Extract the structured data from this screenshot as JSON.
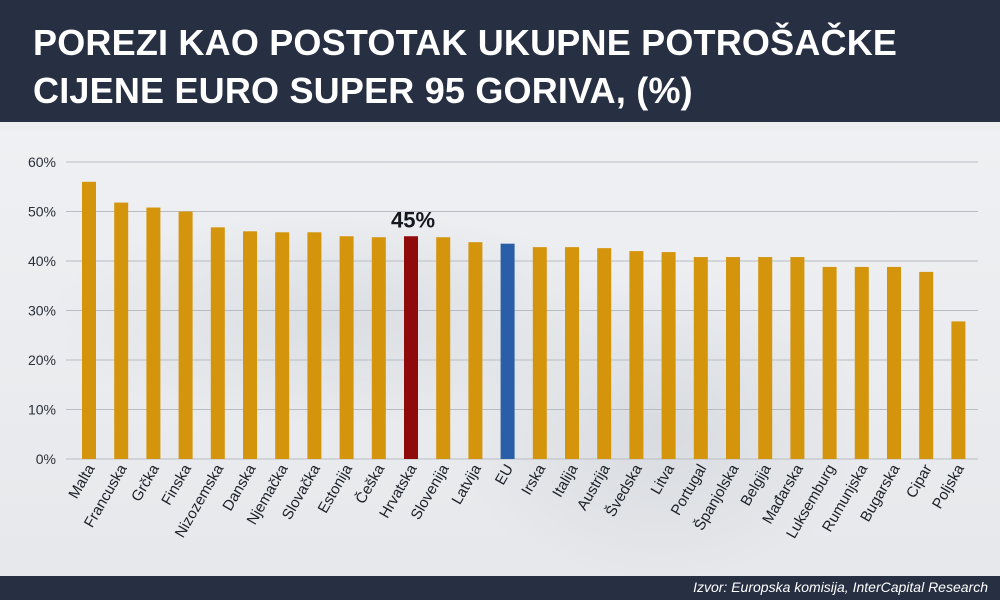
{
  "header": {
    "title_line1": "POREZI KAO POSTOTAK UKUPNE POTROŠAČKE",
    "title_line2": "CIJENE EURO SUPER 95 GORIVA, (%)"
  },
  "footer": {
    "source": "Izvor: Europska komisija, InterCapital Research"
  },
  "colors": {
    "default_bar": "#d4940c",
    "highlight_bar": "#8f0b0b",
    "eu_bar": "#2a5ea6",
    "header_bg": "#272f42",
    "gridline": "#b9bcc2"
  },
  "chart_data": {
    "type": "bar",
    "title": "POREZI KAO POSTOTAK UKUPNE POTROŠAČKE CIJENE EURO SUPER 95 GORIVA, (%)",
    "xlabel": "",
    "ylabel": "",
    "ylim": [
      0,
      60
    ],
    "yticks": [
      "0%",
      "10%",
      "20%",
      "30%",
      "40%",
      "50%",
      "60%"
    ],
    "grid": true,
    "categories": [
      "Malta",
      "Francuska",
      "Grčka",
      "Finska",
      "Nizozemska",
      "Danska",
      "Njemačka",
      "Slovačka",
      "Estonija",
      "Češka",
      "Hrvatska",
      "Slovenija",
      "Latvija",
      "EU",
      "Irska",
      "Italija",
      "Austrija",
      "Švedska",
      "Litva",
      "Portugal",
      "Španjolska",
      "Belgija",
      "Mađarska",
      "Luksemburg",
      "Rumunjska",
      "Bugarska",
      "Cipar",
      "Poljska"
    ],
    "values": [
      56,
      51.8,
      50.8,
      50,
      46.8,
      46,
      45.8,
      45.8,
      45,
      44.8,
      45,
      44.8,
      43.8,
      43.5,
      42.8,
      42.8,
      42.6,
      42,
      41.8,
      40.8,
      40.8,
      40.8,
      40.8,
      38.8,
      38.8,
      38.8,
      37.8,
      27.8
    ],
    "highlight": "Hrvatska",
    "eu_category": "EU",
    "annotations": [
      {
        "category": "Hrvatska",
        "text": "45%"
      }
    ]
  }
}
